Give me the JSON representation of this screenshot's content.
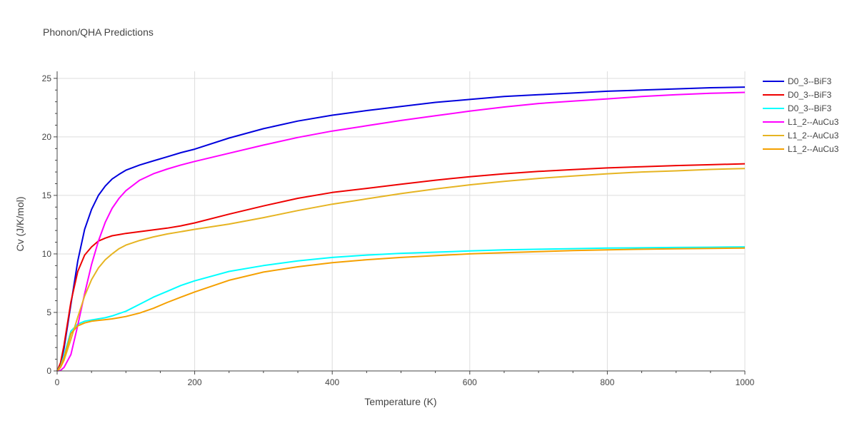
{
  "chart_data": {
    "type": "line",
    "title": "Phonon/QHA Predictions",
    "xlabel": "Temperature (K)",
    "ylabel": "Cv (J/K/mol)",
    "xlim": [
      0,
      1000
    ],
    "ylim": [
      0,
      25.6
    ],
    "xticks": [
      0,
      200,
      400,
      600,
      800,
      1000
    ],
    "yticks": [
      0,
      5,
      10,
      15,
      20,
      25
    ],
    "grid": true,
    "legend_position": "top-right",
    "series": [
      {
        "name": "D0_3--BiF3",
        "color": "#0000dd",
        "x": [
          0,
          5,
          10,
          20,
          30,
          40,
          50,
          60,
          70,
          80,
          90,
          100,
          120,
          140,
          160,
          180,
          200,
          250,
          300,
          350,
          400,
          450,
          500,
          550,
          600,
          650,
          700,
          750,
          800,
          850,
          900,
          950,
          1000
        ],
        "y": [
          0,
          0.6,
          1.9,
          5.7,
          9.4,
          12.1,
          13.8,
          15.0,
          15.8,
          16.4,
          16.8,
          17.15,
          17.6,
          17.95,
          18.3,
          18.65,
          18.95,
          19.9,
          20.7,
          21.35,
          21.85,
          22.25,
          22.6,
          22.95,
          23.2,
          23.45,
          23.6,
          23.75,
          23.9,
          24.0,
          24.1,
          24.2,
          24.25
        ]
      },
      {
        "name": "D0_3--BiF3",
        "color": "#ee0000",
        "x": [
          0,
          5,
          10,
          20,
          30,
          40,
          50,
          60,
          70,
          80,
          90,
          100,
          120,
          140,
          160,
          180,
          200,
          250,
          300,
          350,
          400,
          450,
          500,
          550,
          600,
          650,
          700,
          750,
          800,
          850,
          900,
          950,
          1000
        ],
        "y": [
          0,
          0.7,
          2.2,
          5.9,
          8.5,
          9.9,
          10.6,
          11.1,
          11.35,
          11.55,
          11.65,
          11.75,
          11.9,
          12.05,
          12.2,
          12.4,
          12.65,
          13.4,
          14.1,
          14.75,
          15.25,
          15.6,
          15.95,
          16.3,
          16.6,
          16.85,
          17.05,
          17.2,
          17.35,
          17.45,
          17.55,
          17.62,
          17.7
        ]
      },
      {
        "name": "D0_3--BiF3",
        "color": "#00ffff",
        "x": [
          0,
          5,
          10,
          20,
          30,
          40,
          50,
          60,
          70,
          80,
          90,
          100,
          120,
          140,
          160,
          180,
          200,
          250,
          300,
          350,
          400,
          450,
          500,
          550,
          600,
          650,
          700,
          750,
          800,
          850,
          900,
          950,
          1000
        ],
        "y": [
          0,
          0.4,
          1.3,
          3.4,
          4.0,
          4.25,
          4.35,
          4.45,
          4.55,
          4.7,
          4.9,
          5.1,
          5.7,
          6.3,
          6.8,
          7.3,
          7.7,
          8.5,
          9.0,
          9.4,
          9.7,
          9.9,
          10.05,
          10.15,
          10.25,
          10.35,
          10.4,
          10.45,
          10.5,
          10.52,
          10.55,
          10.57,
          10.6
        ]
      },
      {
        "name": "L1_2--AuCu3",
        "color": "#ff00ff",
        "x": [
          0,
          5,
          10,
          20,
          30,
          40,
          50,
          60,
          70,
          80,
          90,
          100,
          120,
          140,
          160,
          180,
          200,
          250,
          300,
          350,
          400,
          450,
          500,
          550,
          600,
          650,
          700,
          750,
          800,
          850,
          900,
          950,
          1000
        ],
        "y": [
          0,
          0.05,
          0.3,
          1.4,
          3.9,
          6.6,
          9.1,
          11.1,
          12.7,
          13.9,
          14.75,
          15.4,
          16.3,
          16.85,
          17.25,
          17.6,
          17.9,
          18.6,
          19.3,
          19.95,
          20.5,
          20.95,
          21.4,
          21.8,
          22.2,
          22.55,
          22.85,
          23.05,
          23.25,
          23.45,
          23.6,
          23.72,
          23.8
        ]
      },
      {
        "name": "L1_2--AuCu3",
        "color": "#e6b422",
        "x": [
          0,
          5,
          10,
          20,
          30,
          40,
          50,
          60,
          70,
          80,
          90,
          100,
          120,
          140,
          160,
          180,
          200,
          250,
          300,
          350,
          400,
          450,
          500,
          550,
          600,
          650,
          700,
          750,
          800,
          850,
          900,
          950,
          1000
        ],
        "y": [
          0,
          0.3,
          0.9,
          2.7,
          4.6,
          6.4,
          7.8,
          8.8,
          9.5,
          10.0,
          10.45,
          10.75,
          11.15,
          11.45,
          11.7,
          11.9,
          12.1,
          12.55,
          13.1,
          13.7,
          14.25,
          14.7,
          15.15,
          15.55,
          15.9,
          16.2,
          16.45,
          16.65,
          16.85,
          17.0,
          17.1,
          17.22,
          17.3
        ]
      },
      {
        "name": "L1_2--AuCu3",
        "color": "#f5a000",
        "x": [
          0,
          5,
          10,
          20,
          30,
          40,
          50,
          60,
          70,
          80,
          90,
          100,
          120,
          140,
          160,
          180,
          200,
          250,
          300,
          350,
          400,
          450,
          500,
          550,
          600,
          650,
          700,
          750,
          800,
          850,
          900,
          950,
          1000
        ],
        "y": [
          0,
          0.35,
          1.1,
          3.2,
          3.85,
          4.1,
          4.25,
          4.32,
          4.38,
          4.45,
          4.55,
          4.65,
          4.95,
          5.35,
          5.85,
          6.3,
          6.75,
          7.75,
          8.45,
          8.9,
          9.25,
          9.5,
          9.7,
          9.85,
          10.0,
          10.1,
          10.2,
          10.28,
          10.35,
          10.4,
          10.44,
          10.47,
          10.5
        ]
      }
    ]
  }
}
